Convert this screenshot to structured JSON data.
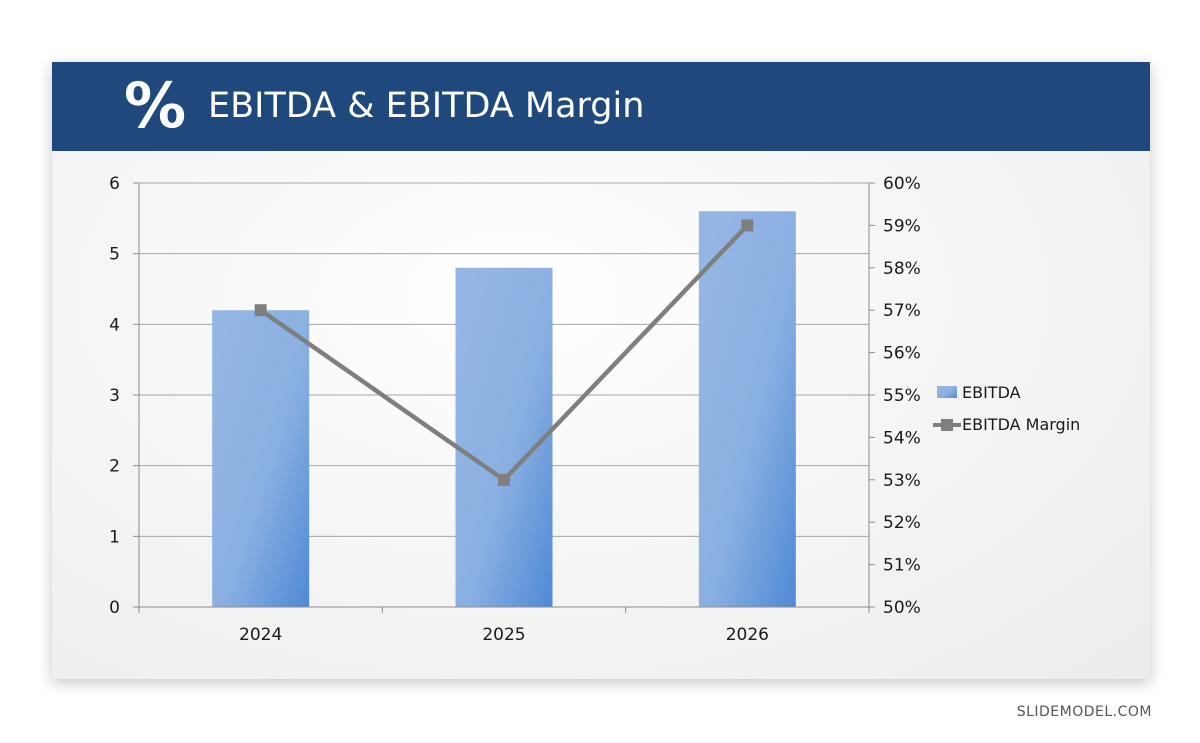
{
  "header": {
    "icon": "%",
    "icon_name": "percent-icon",
    "title": "EBITDA & EBITDA Margin",
    "background": "#1f497d"
  },
  "watermark": "SLIDEMODEL.COM",
  "chart_data": {
    "type": "bar+line",
    "categories": [
      "2024",
      "2025",
      "2026"
    ],
    "series": [
      {
        "name": "EBITDA",
        "type": "bar",
        "axis": "left",
        "values": [
          4.2,
          4.8,
          5.6
        ],
        "color": "#7ea7de"
      },
      {
        "name": "EBITDA Margin",
        "type": "line",
        "axis": "right",
        "values": [
          0.57,
          0.53,
          0.59
        ],
        "color": "#7f7f7f",
        "marker": "square"
      }
    ],
    "y_left": {
      "min": 0,
      "max": 6,
      "step": 1,
      "ticks": [
        "0",
        "1",
        "2",
        "3",
        "4",
        "5",
        "6"
      ]
    },
    "y_right": {
      "min": 0.5,
      "max": 0.6,
      "step": 0.01,
      "ticks": [
        "50%",
        "51%",
        "52%",
        "53%",
        "54%",
        "55%",
        "56%",
        "57%",
        "58%",
        "59%",
        "60%"
      ]
    },
    "grid": true,
    "legend_position": "right"
  }
}
